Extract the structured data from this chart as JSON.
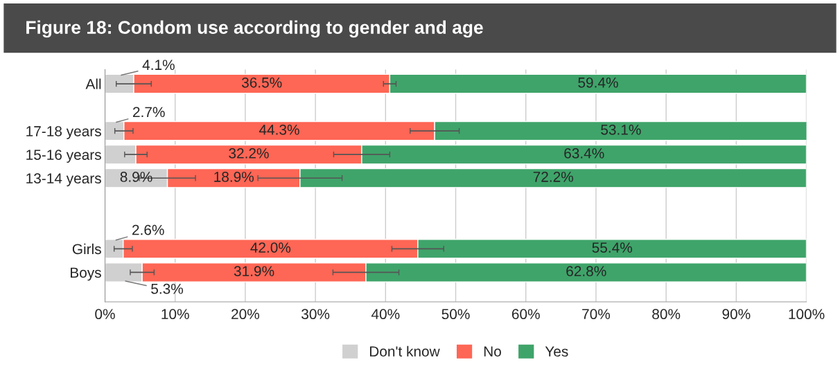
{
  "chart_data": {
    "type": "bar",
    "orientation": "horizontal",
    "stacked": true,
    "title": "Figure 18: Condom use according to gender and age",
    "categories": [
      "All",
      null,
      "17-18 years",
      "15-16 years",
      "13-14 years",
      null,
      null,
      "Girls",
      "Boys"
    ],
    "series": [
      {
        "name": "Don't know",
        "color": "#d0d0d0",
        "values": [
          4.1,
          null,
          2.7,
          4.4,
          8.9,
          null,
          null,
          2.6,
          5.3
        ],
        "errors": [
          2.5,
          null,
          1.3,
          1.6,
          4.0,
          null,
          null,
          1.3,
          1.7
        ],
        "value_labels": [
          "4.1%",
          null,
          "2.7%",
          null,
          "8.9%",
          null,
          null,
          "2.6%",
          "5.3%"
        ]
      },
      {
        "name": "No",
        "color": "#fe6655",
        "values": [
          36.5,
          null,
          44.3,
          32.2,
          18.9,
          null,
          null,
          42.0,
          31.9
        ],
        "errors": [
          0.9,
          null,
          3.5,
          4.0,
          6.0,
          null,
          null,
          3.7,
          4.7
        ],
        "value_labels": [
          "36.5%",
          null,
          "44.3%",
          "32.2%",
          "18.9%",
          null,
          null,
          "42.0%",
          "31.9%"
        ]
      },
      {
        "name": "Yes",
        "color": "#3fa46a",
        "values": [
          59.4,
          null,
          53.1,
          63.4,
          72.2,
          null,
          null,
          55.4,
          62.8
        ],
        "value_labels": [
          "59.4%",
          null,
          "53.1%",
          "63.4%",
          "72.2%",
          null,
          null,
          "55.4%",
          "62.8%"
        ]
      }
    ],
    "xlim": [
      0,
      100
    ],
    "xticks": [
      {
        "value": 0,
        "label": "0%"
      },
      {
        "value": 10,
        "label": "10%"
      },
      {
        "value": 20,
        "label": "20%"
      },
      {
        "value": 30,
        "label": "30%"
      },
      {
        "value": 40,
        "label": "40%"
      },
      {
        "value": 50,
        "label": "50%"
      },
      {
        "value": 60,
        "label": "60%"
      },
      {
        "value": 70,
        "label": "70%"
      },
      {
        "value": 80,
        "label": "80%"
      },
      {
        "value": 90,
        "label": "90%"
      },
      {
        "value": 100,
        "label": "100%"
      }
    ],
    "grid": "x",
    "legend": "bottom"
  }
}
